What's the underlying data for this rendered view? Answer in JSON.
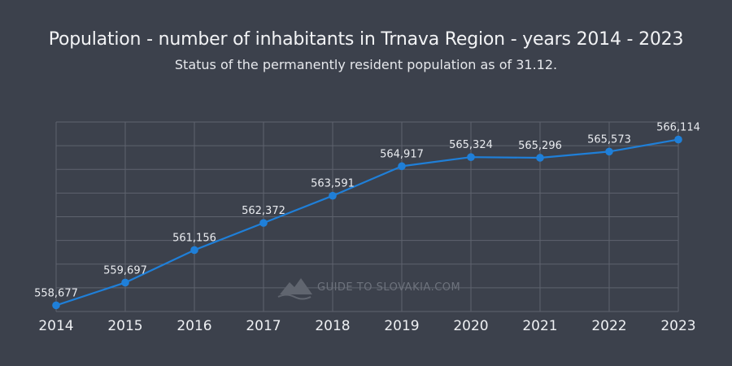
{
  "chart_data": {
    "type": "line",
    "title": "Population - number of inhabitants in Trnava Region - years 2014 - 2023",
    "subtitle": "Status of the permanently resident population as of 31.12.",
    "categories": [
      "2014",
      "2015",
      "2016",
      "2017",
      "2018",
      "2019",
      "2020",
      "2021",
      "2022",
      "2023"
    ],
    "series": [
      {
        "name": "Population",
        "values": [
          558677,
          559697,
          561156,
          562372,
          563591,
          564917,
          565324,
          565296,
          565573,
          566114
        ],
        "labels": [
          "558,677",
          "559,697",
          "561,156",
          "562,372",
          "563,591",
          "564,917",
          "565,324",
          "565,296",
          "565,573",
          "566,114"
        ]
      }
    ],
    "ylim": [
      558400,
      566900
    ],
    "grid": true,
    "colors": {
      "line": "#1f7fd8",
      "grid": "#5e636e",
      "background": "#3c414c"
    }
  },
  "watermark": {
    "text": "GUIDE TO SLOVAKIA.COM"
  }
}
